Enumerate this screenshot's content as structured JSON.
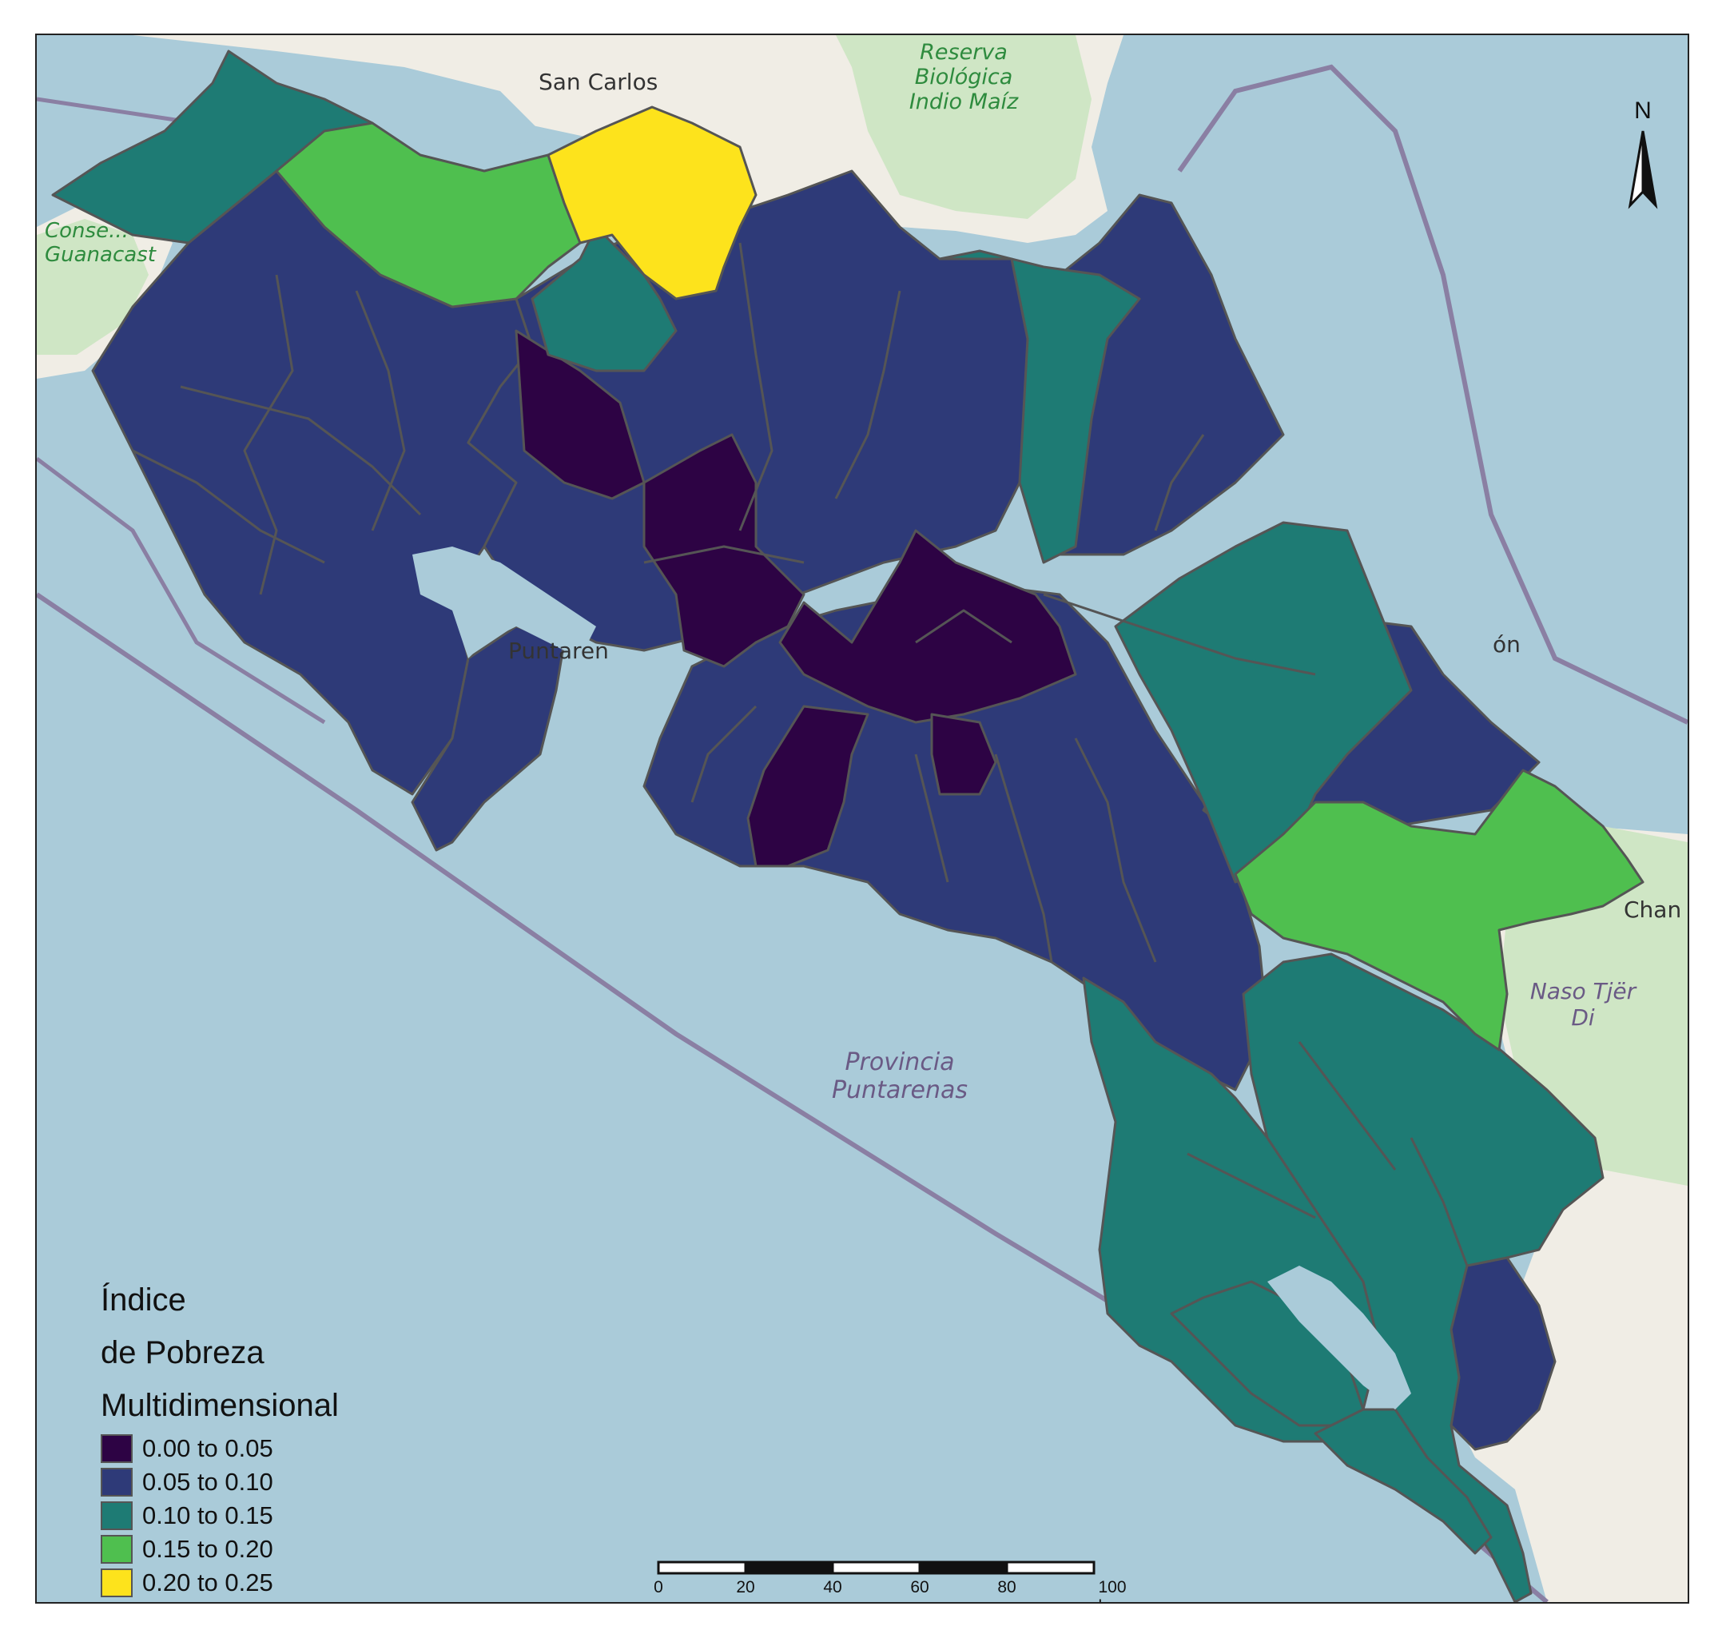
{
  "legend": {
    "title_lines": [
      "Índice",
      "de Pobreza",
      "Multidimensional"
    ],
    "classes": [
      {
        "label": "0.00 to 0.05",
        "color": "#2d0344"
      },
      {
        "label": "0.05 to 0.10",
        "color": "#2e3a78"
      },
      {
        "label": "0.10 to 0.15",
        "color": "#1e7b74"
      },
      {
        "label": "0.15 to 0.20",
        "color": "#4fbf4f"
      },
      {
        "label": "0.20 to 0.25",
        "color": "#fde31c"
      }
    ]
  },
  "scale_bar": {
    "ticks": [
      "0",
      "20",
      "40",
      "60",
      "80",
      "100 km"
    ]
  },
  "north_arrow": {
    "label": "N"
  },
  "basemap_labels": {
    "reserva": "Reserva\nBiológica\nIndio Maíz",
    "guanacaste": "Conse...\nGuanacast",
    "provincia": "Provincia\nPuntarenas",
    "naso": "Naso Tjër\nDi",
    "san_carlos": "San Carlos",
    "puntarenas": "Puntaren",
    "limon": "ón",
    "chan": "Chan"
  },
  "colors": {
    "water": "#aacbd9",
    "land": "#f0ede5",
    "reserve": "#cfe6c5",
    "border": "#8a7fa3",
    "district_line": "#555555"
  }
}
